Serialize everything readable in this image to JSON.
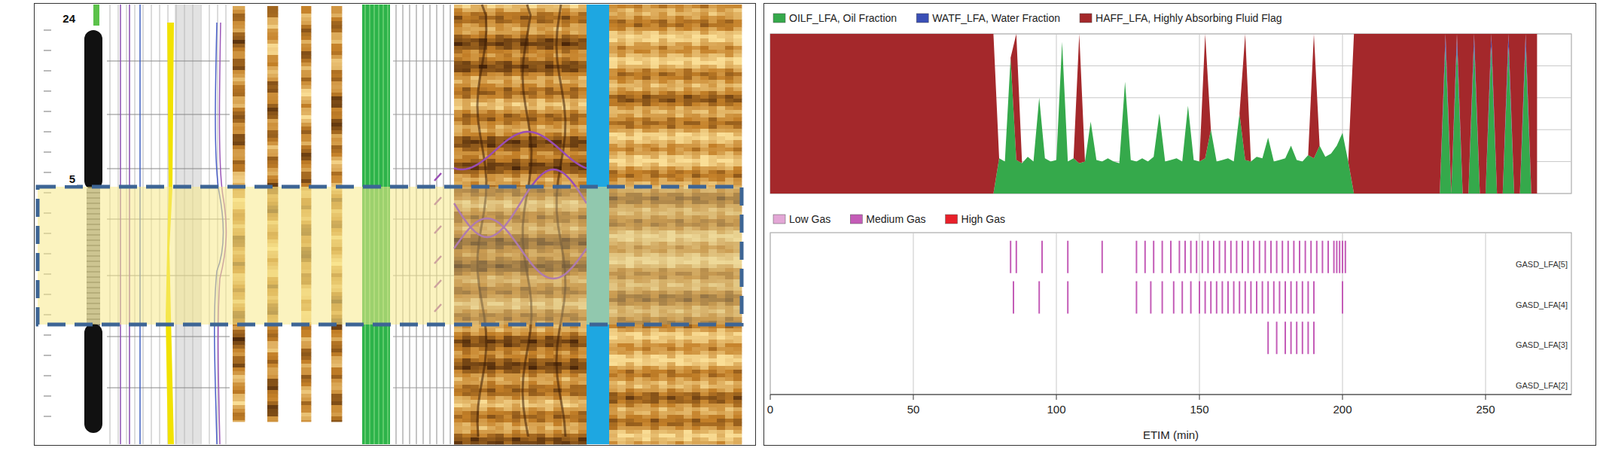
{
  "log_image": {
    "depth_labels": [
      "24",
      "5"
    ]
  },
  "chart_data": [
    {
      "type": "area",
      "stacked": true,
      "grid": true,
      "legend": "top",
      "tick_labels": false,
      "xlim": [
        0,
        280
      ],
      "xticks": [
        0,
        50,
        100,
        150,
        200,
        250
      ],
      "ylim": [
        0,
        1
      ],
      "yticks": [
        0,
        0.2,
        0.4,
        0.6,
        0.8,
        1
      ],
      "x": [
        0,
        2,
        4,
        6,
        8,
        10,
        12,
        14,
        16,
        18,
        20,
        22,
        24,
        26,
        28,
        30,
        32,
        34,
        36,
        38,
        40,
        42,
        44,
        46,
        48,
        50,
        52,
        54,
        56,
        58,
        60,
        62,
        64,
        66,
        68,
        70,
        72,
        74,
        76,
        78,
        80,
        82,
        84,
        86,
        88,
        90,
        92,
        94,
        96,
        98,
        100,
        102,
        104,
        106,
        108,
        110,
        112,
        114,
        116,
        118,
        120,
        122,
        124,
        126,
        128,
        130,
        132,
        134,
        136,
        138,
        140,
        142,
        144,
        146,
        148,
        150,
        152,
        154,
        156,
        158,
        160,
        162,
        164,
        166,
        168,
        170,
        172,
        174,
        176,
        178,
        180,
        182,
        184,
        186,
        188,
        190,
        192,
        194,
        196,
        198,
        200,
        202,
        204,
        206,
        208,
        210,
        212,
        214,
        216,
        218,
        220,
        222,
        224,
        226,
        228,
        230,
        232,
        234,
        236,
        238,
        240,
        242,
        244,
        246,
        248,
        250,
        252,
        254,
        256,
        258,
        260,
        262,
        264,
        266,
        268
      ],
      "series": [
        {
          "name": "OILF_LFA, Oil Fraction",
          "color": "#35a94b",
          "values": [
            0,
            0,
            0,
            0,
            0,
            0,
            0,
            0,
            0,
            0,
            0,
            0,
            0,
            0,
            0,
            0,
            0,
            0,
            0,
            0,
            0,
            0,
            0,
            0,
            0,
            0,
            0,
            0,
            0,
            0,
            0,
            0,
            0,
            0,
            0,
            0,
            0,
            0,
            0,
            0,
            0.22,
            0.2,
            0.85,
            0.21,
            0.19,
            0.23,
            0.2,
            0.6,
            0.22,
            0.2,
            0.21,
            0.95,
            0.2,
            0.22,
            0.19,
            0.2,
            0.45,
            0.21,
            0.2,
            0.22,
            0.2,
            0.19,
            0.7,
            0.21,
            0.2,
            0.22,
            0.2,
            0.23,
            0.5,
            0.2,
            0.21,
            0.22,
            0.2,
            0.55,
            0.21,
            0.2,
            0.22,
            0.4,
            0.2,
            0.21,
            0.22,
            0.2,
            0.5,
            0.21,
            0.2,
            0.23,
            0.22,
            0.35,
            0.2,
            0.21,
            0.22,
            0.3,
            0.21,
            0.2,
            0.24,
            0.22,
            0.3,
            0.23,
            0.25,
            0.3,
            0.38,
            0.2,
            0,
            0,
            0,
            0,
            0,
            0,
            0,
            0,
            0,
            0,
            0,
            0,
            0,
            0,
            0,
            0,
            0.92,
            0,
            0.92,
            0,
            0,
            0.92,
            0,
            0,
            0.92,
            0,
            0,
            0.92,
            0,
            0,
            0.92,
            0,
            0
          ]
        },
        {
          "name": "WATF_LFA, Water Fraction",
          "color": "#3a4fb6",
          "values": [
            0,
            0,
            0,
            0,
            0,
            0,
            0,
            0,
            0,
            0,
            0,
            0,
            0,
            0,
            0,
            0,
            0,
            0,
            0,
            0,
            0,
            0,
            0,
            0,
            0,
            0,
            0,
            0,
            0,
            0,
            0,
            0,
            0,
            0,
            0,
            0,
            0,
            0,
            0,
            0,
            0,
            0,
            0,
            0,
            0,
            0,
            0,
            0,
            0,
            0,
            0,
            0,
            0,
            0,
            0,
            0,
            0,
            0,
            0,
            0,
            0,
            0,
            0,
            0,
            0,
            0,
            0,
            0,
            0,
            0,
            0,
            0,
            0,
            0,
            0,
            0,
            0,
            0,
            0,
            0,
            0,
            0,
            0,
            0,
            0,
            0,
            0,
            0,
            0,
            0,
            0,
            0,
            0,
            0,
            0,
            0,
            0,
            0,
            0,
            0,
            0,
            0,
            0,
            0,
            0,
            0,
            0,
            0,
            0,
            0,
            0,
            0,
            0,
            0,
            0,
            0,
            0,
            0,
            0.08,
            0,
            0.08,
            0,
            0,
            0.08,
            0,
            0,
            0.08,
            0,
            0,
            0.08,
            0,
            0,
            0.08,
            0,
            0
          ]
        },
        {
          "name": "HAFF_LFA, Highly Absorbing Fluid Flag",
          "color": "#a4282b",
          "values": [
            1,
            1,
            1,
            1,
            1,
            1,
            1,
            1,
            1,
            1,
            1,
            1,
            1,
            1,
            1,
            1,
            1,
            1,
            1,
            1,
            1,
            1,
            1,
            1,
            1,
            1,
            1,
            1,
            1,
            1,
            1,
            1,
            1,
            1,
            1,
            1,
            1,
            1,
            1,
            1,
            0,
            0,
            0,
            0.79,
            0,
            0,
            0,
            0,
            0,
            0,
            0,
            0,
            0,
            0,
            0.81,
            0,
            0,
            0,
            0,
            0,
            0,
            0,
            0,
            0,
            0,
            0,
            0,
            0,
            0,
            0,
            0,
            0,
            0,
            0,
            0,
            0,
            0.78,
            0,
            0,
            0,
            0,
            0,
            0,
            0.79,
            0,
            0,
            0,
            0,
            0,
            0,
            0,
            0,
            0,
            0,
            0,
            0.78,
            0,
            0,
            0,
            0,
            0,
            0,
            1,
            1,
            1,
            1,
            1,
            1,
            1,
            1,
            1,
            1,
            1,
            1,
            1,
            1,
            1,
            1,
            0,
            1,
            0,
            1,
            1,
            0,
            1,
            1,
            0,
            1,
            1,
            0,
            1,
            1,
            0,
            1,
            1
          ]
        }
      ]
    },
    {
      "type": "event",
      "grid": true,
      "legend": "top",
      "tick_labels": true,
      "xlabel": "ETIM (min)",
      "xlim": [
        0,
        280
      ],
      "xticks": [
        0,
        50,
        100,
        150,
        200,
        250
      ],
      "categories": [
        "GASD_LFA[5]",
        "GASD_LFA[4]",
        "GASD_LFA[3]",
        "GASD_LFA[2]"
      ],
      "series": [
        {
          "name": "Low Gas",
          "color": "#e3a7d6",
          "values": [
            [],
            [],
            [],
            []
          ]
        },
        {
          "name": "Medium Gas",
          "color": "#c45cb7",
          "values": [
            [
              84,
              86,
              95,
              104,
              116,
              128,
              131,
              134,
              137,
              140,
              143,
              145,
              147,
              149,
              151,
              153,
              155,
              157,
              159,
              161,
              163,
              165,
              167,
              169,
              171,
              173,
              175,
              177,
              179,
              181,
              183,
              185,
              187,
              189,
              191,
              193,
              195,
              197,
              198,
              199,
              200,
              201
            ],
            [
              85,
              94,
              104,
              128,
              133,
              137,
              141,
              144,
              147,
              150,
              152,
              154,
              156,
              158,
              160,
              162,
              164,
              166,
              168,
              170,
              172,
              174,
              176,
              178,
              180,
              182,
              184,
              186,
              188,
              190,
              200
            ],
            [
              174,
              177,
              180,
              182,
              184,
              186,
              188,
              190
            ],
            []
          ]
        },
        {
          "name": "High Gas",
          "color": "#e8202a",
          "values": [
            [],
            [],
            [],
            []
          ]
        }
      ]
    }
  ]
}
